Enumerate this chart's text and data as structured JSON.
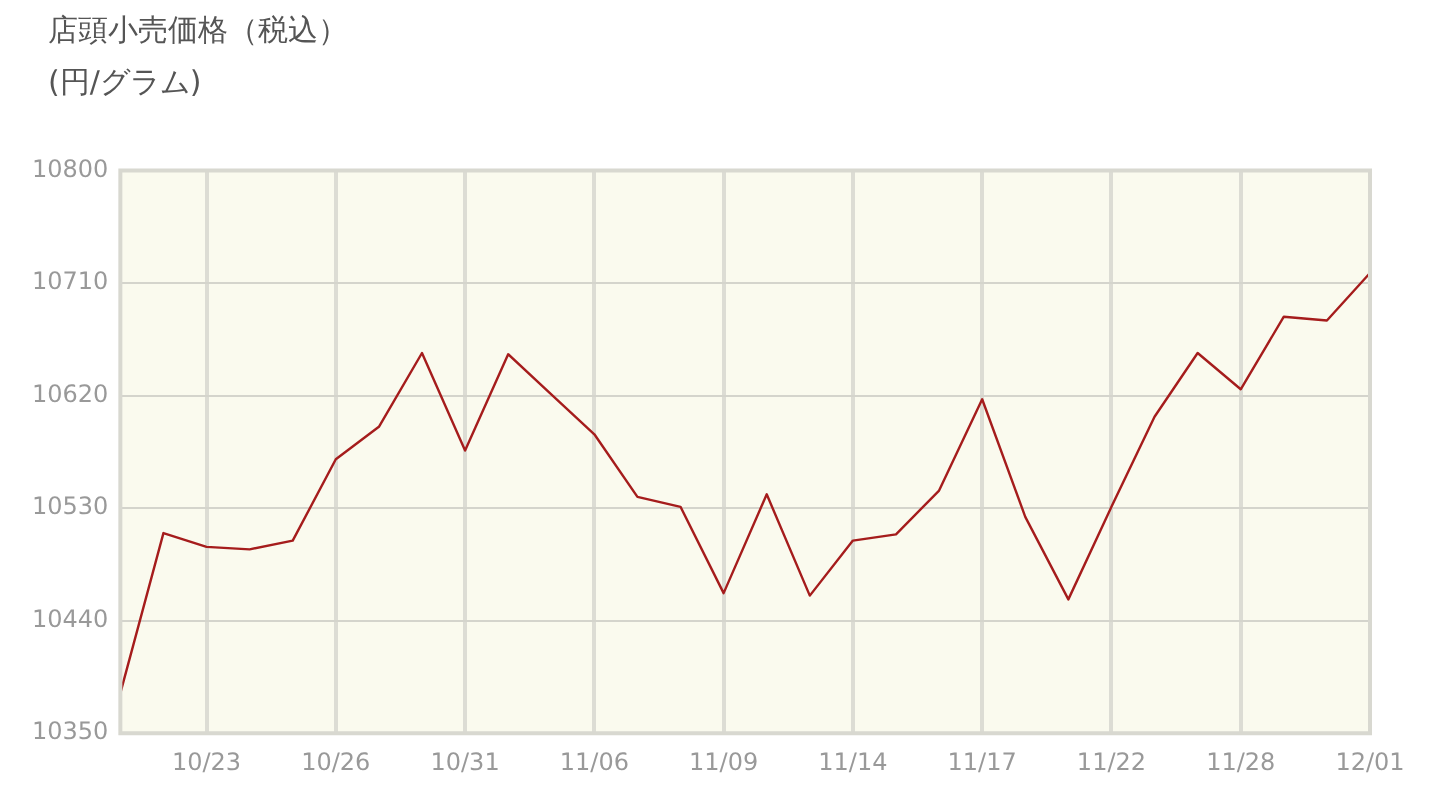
{
  "chart_data": {
    "type": "line",
    "title": "店頭小売価格（税込）",
    "subtitle": "(円/グラム)",
    "categories": [
      null,
      null,
      "10/23",
      null,
      null,
      "10/26",
      null,
      null,
      "10/31",
      null,
      null,
      "11/06",
      null,
      null,
      "11/09",
      null,
      null,
      "11/14",
      null,
      null,
      "11/17",
      null,
      null,
      "11/22",
      null,
      null,
      "11/28",
      null,
      null,
      "12/01"
    ],
    "series": [
      {
        "color": "#a51c1c",
        "values": [
          10382,
          10510,
          10499,
          10497,
          10504,
          10569,
          10595,
          10654,
          10576,
          10653,
          10621,
          10589,
          10539,
          10531,
          10462,
          10541,
          10460,
          10504,
          10509,
          10544,
          10617,
          10523,
          10457,
          10531,
          10603,
          10654,
          10625,
          10683,
          10680,
          10718
        ]
      }
    ],
    "ylim": [
      10350,
      10800
    ],
    "yticks": [
      10350,
      10440,
      10530,
      10620,
      10710,
      10800
    ],
    "grid": true,
    "legend": false,
    "marker": "none",
    "line_style": "solid"
  }
}
